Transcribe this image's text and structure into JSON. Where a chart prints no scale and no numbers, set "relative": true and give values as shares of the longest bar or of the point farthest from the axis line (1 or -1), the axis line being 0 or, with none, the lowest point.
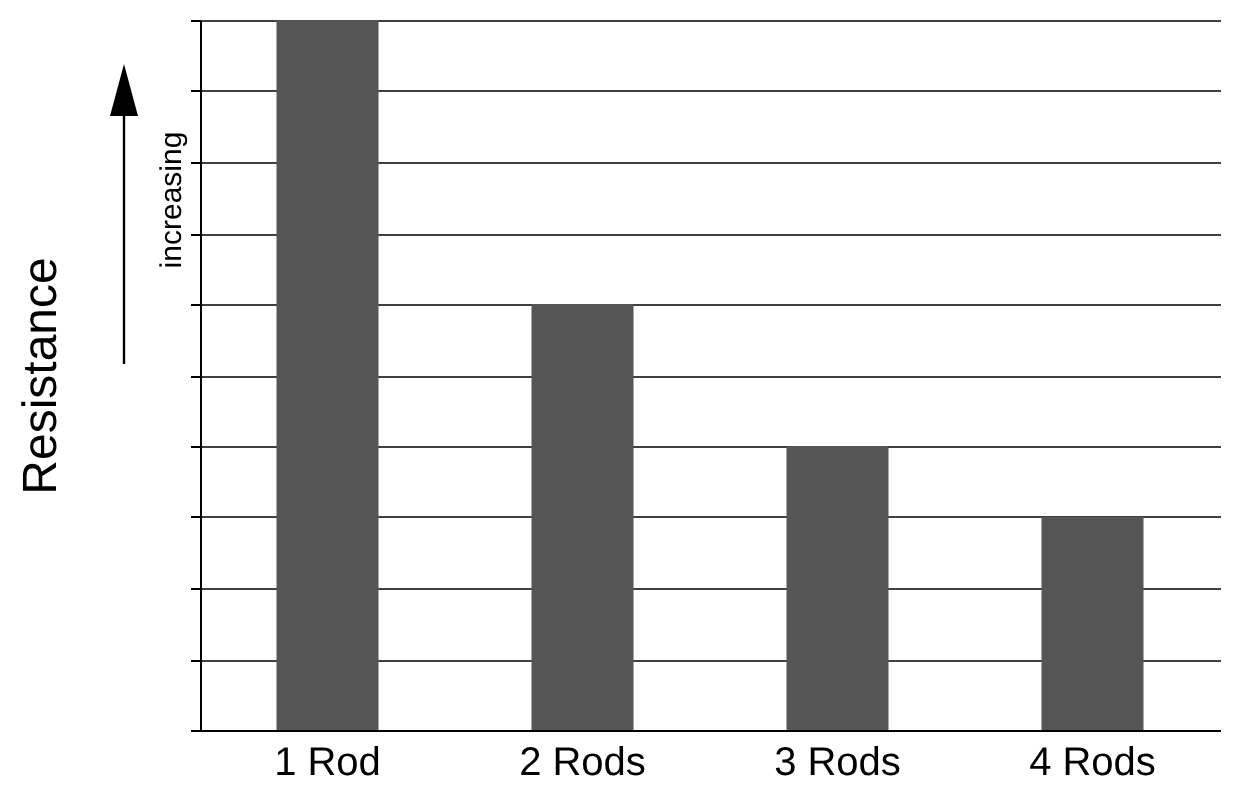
{
  "chart_data": {
    "type": "bar",
    "ylabel": "Resistance",
    "annotations": [
      "increasing"
    ],
    "categories": [
      "1 Rod",
      "2 Rods",
      "3 Rods",
      "4 Rods"
    ],
    "values": [
      1,
      0.6,
      0.4,
      0.3
    ],
    "color": "#555555",
    "relative": true,
    "grid": true
  }
}
